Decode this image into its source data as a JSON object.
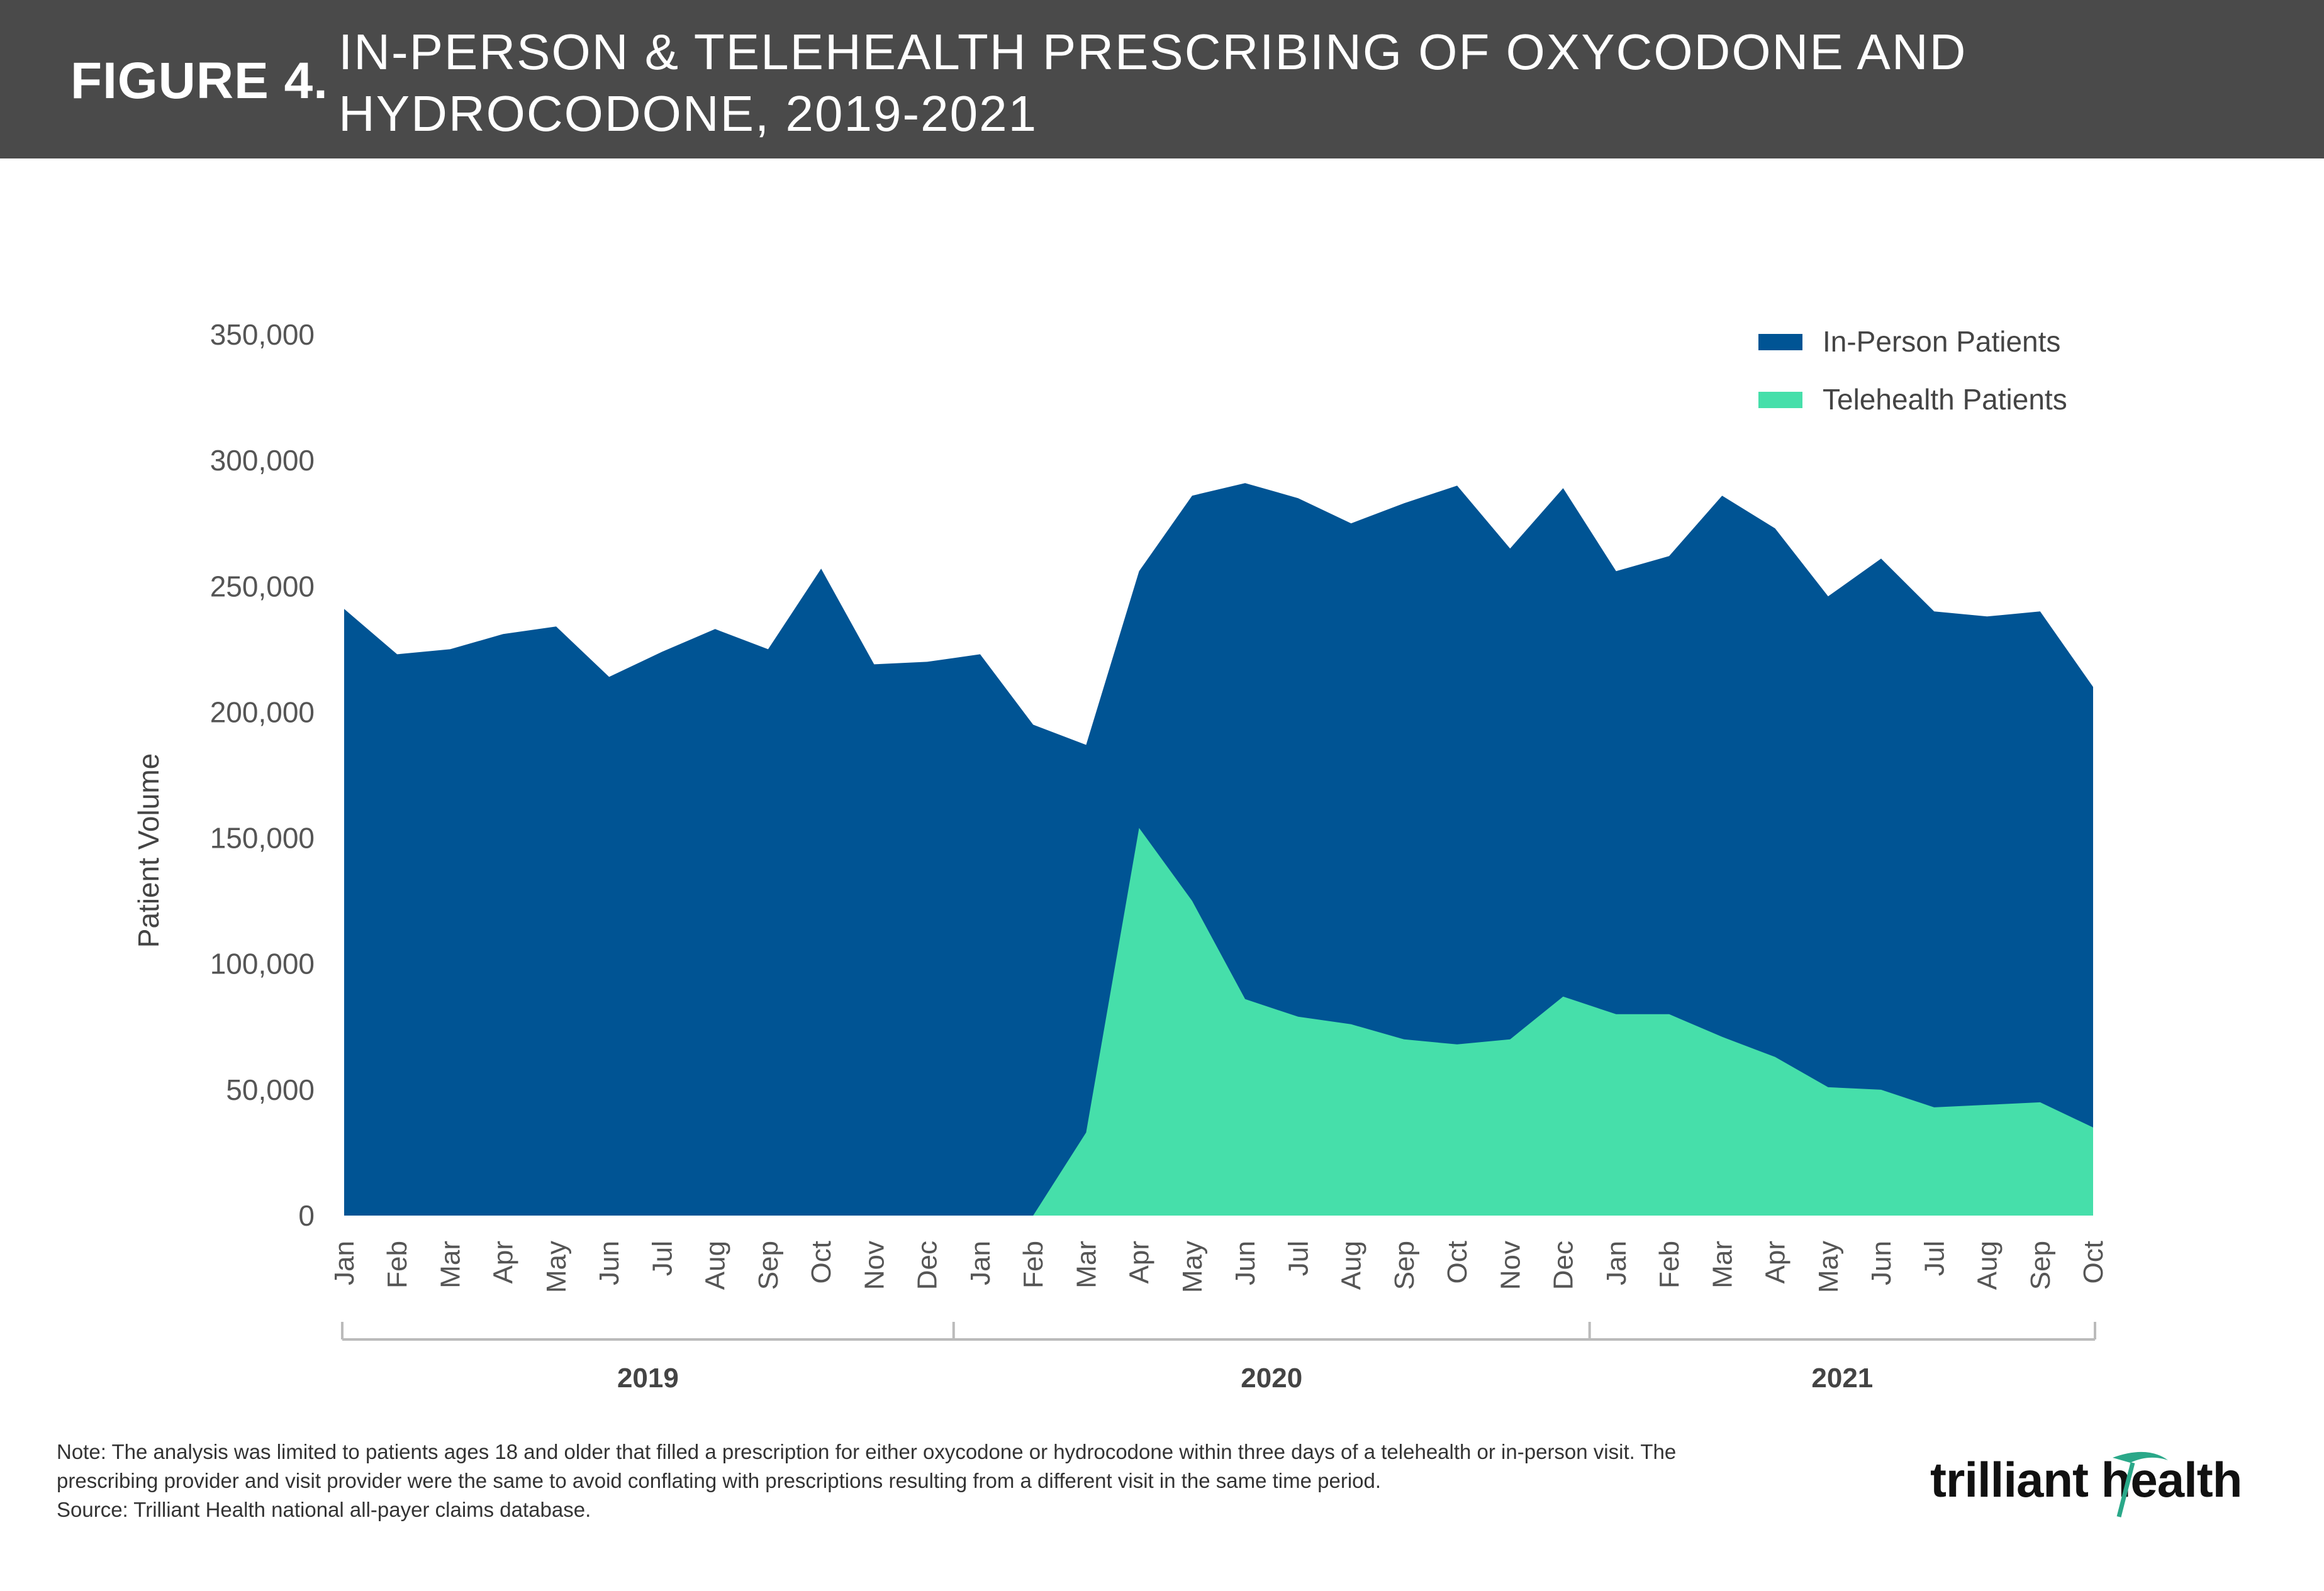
{
  "header": {
    "figure_label": "FIGURE 4.",
    "title_line1": "IN-PERSON & TELEHEALTH PRESCRIBING OF OXYCODONE AND",
    "title_line2": "HYDROCODONE, 2019-2021"
  },
  "colors": {
    "header_bg": "#4a4a4a",
    "in_person": "#005494",
    "telehealth": "#46dfaa",
    "logo_accent": "#2aa889"
  },
  "chart_data": {
    "type": "area",
    "ylabel": "Patient Volume",
    "ylim": [
      0,
      350000
    ],
    "yticks": [
      0,
      50000,
      100000,
      150000,
      200000,
      250000,
      300000,
      350000
    ],
    "ytick_labels": [
      "0",
      "50,000",
      "100,000",
      "150,000",
      "200,000",
      "250,000",
      "300,000",
      "350,000"
    ],
    "legend_position": "top-right",
    "grid": false,
    "categories": [
      "Jan",
      "Feb",
      "Mar",
      "Apr",
      "May",
      "Jun",
      "Jul",
      "Aug",
      "Sep",
      "Oct",
      "Nov",
      "Dec",
      "Jan",
      "Feb",
      "Mar",
      "Apr",
      "May",
      "Jun",
      "Jul",
      "Aug",
      "Sep",
      "Oct",
      "Nov",
      "Dec",
      "Jan",
      "Feb",
      "Mar",
      "Apr",
      "May",
      "Jun",
      "Jul",
      "Aug",
      "Sep",
      "Oct"
    ],
    "year_groups": [
      {
        "label": "2019",
        "start": 0,
        "end": 11
      },
      {
        "label": "2020",
        "start": 12,
        "end": 23
      },
      {
        "label": "2021",
        "start": 24,
        "end": 33
      }
    ],
    "series": [
      {
        "name": "In-Person Patients",
        "color": "#005494",
        "values": [
          241000,
          223000,
          225000,
          231000,
          234000,
          214000,
          224000,
          233000,
          225000,
          257000,
          219000,
          220000,
          223000,
          195000,
          187000,
          256000,
          286000,
          291000,
          285000,
          275000,
          283000,
          290000,
          265000,
          289000,
          256000,
          262000,
          286000,
          273000,
          246000,
          261000,
          240000,
          238000,
          240000,
          210000
        ]
      },
      {
        "name": "Telehealth Patients",
        "color": "#46dfaa",
        "values": [
          0,
          0,
          0,
          0,
          0,
          0,
          0,
          0,
          0,
          0,
          0,
          0,
          0,
          0,
          33000,
          154000,
          125000,
          86000,
          79000,
          76000,
          70000,
          68000,
          70000,
          87000,
          80000,
          80000,
          71000,
          63000,
          51000,
          50000,
          43000,
          44000,
          45000,
          35000
        ]
      }
    ]
  },
  "note": {
    "line1": "Note: The analysis was limited to patients ages 18 and older that filled a prescription for either oxycodone or hydrocodone within three days of a telehealth or in-person visit. The",
    "line2": "prescribing provider and visit provider were the same to avoid conflating with prescriptions resulting from a different visit in the same time period.",
    "line3": "Source: Trilliant Health national all-payer claims database."
  },
  "logo": {
    "text": "trilliant health"
  }
}
